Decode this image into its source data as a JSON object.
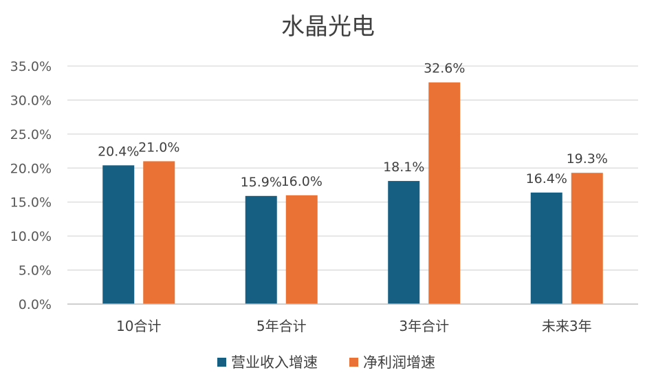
{
  "chart_data": {
    "type": "bar",
    "title": "水晶光电",
    "categories": [
      "10合计",
      "5年合计",
      "3年合计",
      "未来3年"
    ],
    "series": [
      {
        "name": "营业收入增速",
        "values": [
          20.4,
          15.9,
          18.1,
          16.4
        ],
        "labels": [
          "20.4%",
          "15.9%",
          "18.1%",
          "16.4%"
        ],
        "color": "#175F82"
      },
      {
        "name": "净利润增速",
        "values": [
          21.0,
          16.0,
          32.6,
          19.3
        ],
        "labels": [
          "21.0%",
          "16.0%",
          "32.6%",
          "19.3%"
        ],
        "color": "#E97234"
      }
    ],
    "ylim": [
      0,
      35
    ],
    "yticks": [
      0,
      5,
      10,
      15,
      20,
      25,
      30,
      35
    ],
    "ytick_labels": [
      "0.0%",
      "5.0%",
      "10.0%",
      "15.0%",
      "20.0%",
      "25.0%",
      "30.0%",
      "35.0%"
    ],
    "grid": true,
    "legend_position": "bottom"
  }
}
